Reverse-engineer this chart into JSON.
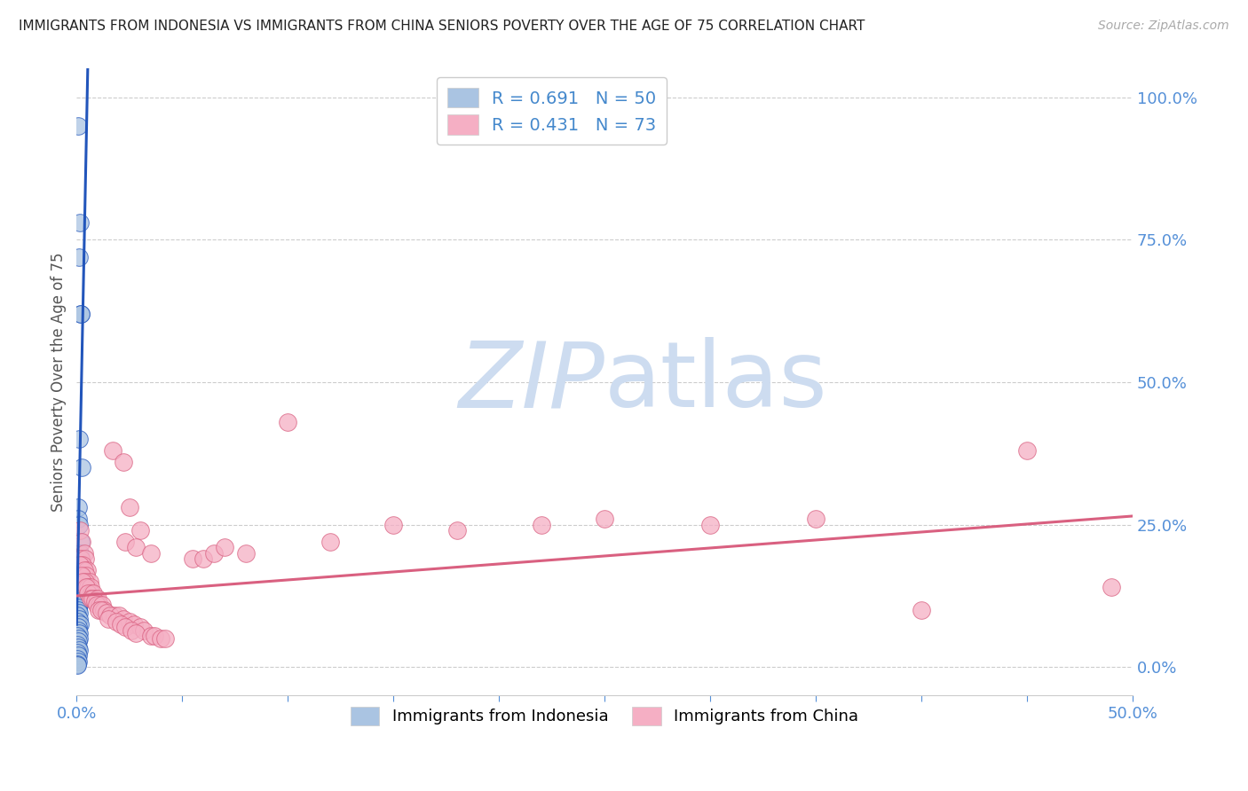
{
  "title": "IMMIGRANTS FROM INDONESIA VS IMMIGRANTS FROM CHINA SENIORS POVERTY OVER THE AGE OF 75 CORRELATION CHART",
  "source": "Source: ZipAtlas.com",
  "ylabel": "Seniors Poverty Over the Age of 75",
  "ylabel_right_ticks": [
    "0.0%",
    "25.0%",
    "50.0%",
    "75.0%",
    "100.0%"
  ],
  "ylabel_right_vals": [
    0.0,
    0.25,
    0.5,
    0.75,
    1.0
  ],
  "xmin": 0.0,
  "xmax": 0.5,
  "ymin": -0.05,
  "ymax": 1.05,
  "legend1_label": "Immigrants from Indonesia",
  "legend2_label": "Immigrants from China",
  "R_indonesia": 0.691,
  "N_indonesia": 50,
  "R_china": 0.431,
  "N_china": 73,
  "color_indonesia": "#aac4e2",
  "color_china": "#f5afc4",
  "line_color_indonesia": "#2255bb",
  "line_color_china": "#d96080",
  "watermark_zip": "ZIP",
  "watermark_atlas": "atlas",
  "watermark_color_zip": "#c5d8f2",
  "watermark_color_atlas": "#c5d8f2",
  "background_color": "#ffffff",
  "indonesia_points": [
    [
      0.0008,
      0.95
    ],
    [
      0.0015,
      0.78
    ],
    [
      0.001,
      0.72
    ],
    [
      0.002,
      0.62
    ],
    [
      0.0018,
      0.62
    ],
    [
      0.0012,
      0.4
    ],
    [
      0.0025,
      0.35
    ],
    [
      0.0008,
      0.28
    ],
    [
      0.0006,
      0.26
    ],
    [
      0.001,
      0.25
    ],
    [
      0.0018,
      0.22
    ],
    [
      0.0015,
      0.2
    ],
    [
      0.002,
      0.19
    ],
    [
      0.0012,
      0.18
    ],
    [
      0.001,
      0.175
    ],
    [
      0.0005,
      0.17
    ],
    [
      0.0008,
      0.165
    ],
    [
      0.0015,
      0.16
    ],
    [
      0.001,
      0.155
    ],
    [
      0.0006,
      0.15
    ],
    [
      0.0018,
      0.145
    ],
    [
      0.001,
      0.14
    ],
    [
      0.0005,
      0.135
    ],
    [
      0.0012,
      0.13
    ],
    [
      0.0008,
      0.125
    ],
    [
      0.0015,
      0.12
    ],
    [
      0.0004,
      0.115
    ],
    [
      0.001,
      0.11
    ],
    [
      0.0006,
      0.105
    ],
    [
      0.0008,
      0.1
    ],
    [
      0.0012,
      0.095
    ],
    [
      0.0005,
      0.09
    ],
    [
      0.001,
      0.085
    ],
    [
      0.0004,
      0.08
    ],
    [
      0.0015,
      0.075
    ],
    [
      0.0008,
      0.07
    ],
    [
      0.0006,
      0.065
    ],
    [
      0.001,
      0.06
    ],
    [
      0.0004,
      0.055
    ],
    [
      0.0012,
      0.05
    ],
    [
      0.0008,
      0.045
    ],
    [
      0.0003,
      0.04
    ],
    [
      0.0006,
      0.035
    ],
    [
      0.001,
      0.03
    ],
    [
      0.0004,
      0.025
    ],
    [
      0.0008,
      0.02
    ],
    [
      0.0003,
      0.015
    ],
    [
      0.0006,
      0.01
    ],
    [
      0.0002,
      0.005
    ],
    [
      0.0004,
      0.003
    ]
  ],
  "china_points": [
    [
      0.0015,
      0.24
    ],
    [
      0.0025,
      0.22
    ],
    [
      0.0035,
      0.2
    ],
    [
      0.002,
      0.19
    ],
    [
      0.004,
      0.19
    ],
    [
      0.003,
      0.18
    ],
    [
      0.0015,
      0.18
    ],
    [
      0.005,
      0.17
    ],
    [
      0.0035,
      0.17
    ],
    [
      0.0045,
      0.16
    ],
    [
      0.0025,
      0.16
    ],
    [
      0.006,
      0.15
    ],
    [
      0.004,
      0.15
    ],
    [
      0.003,
      0.15
    ],
    [
      0.0055,
      0.14
    ],
    [
      0.0065,
      0.14
    ],
    [
      0.0045,
      0.14
    ],
    [
      0.007,
      0.13
    ],
    [
      0.0055,
      0.13
    ],
    [
      0.008,
      0.13
    ],
    [
      0.0065,
      0.12
    ],
    [
      0.009,
      0.12
    ],
    [
      0.0075,
      0.12
    ],
    [
      0.01,
      0.12
    ],
    [
      0.0085,
      0.115
    ],
    [
      0.011,
      0.11
    ],
    [
      0.0095,
      0.11
    ],
    [
      0.012,
      0.11
    ],
    [
      0.0105,
      0.1
    ],
    [
      0.013,
      0.1
    ],
    [
      0.0115,
      0.1
    ],
    [
      0.014,
      0.095
    ],
    [
      0.018,
      0.09
    ],
    [
      0.016,
      0.09
    ],
    [
      0.02,
      0.09
    ],
    [
      0.015,
      0.085
    ],
    [
      0.022,
      0.085
    ],
    [
      0.019,
      0.08
    ],
    [
      0.025,
      0.08
    ],
    [
      0.021,
      0.075
    ],
    [
      0.027,
      0.075
    ],
    [
      0.023,
      0.07
    ],
    [
      0.03,
      0.07
    ],
    [
      0.026,
      0.065
    ],
    [
      0.032,
      0.065
    ],
    [
      0.028,
      0.06
    ],
    [
      0.035,
      0.055
    ],
    [
      0.037,
      0.055
    ],
    [
      0.04,
      0.05
    ],
    [
      0.042,
      0.05
    ],
    [
      0.017,
      0.38
    ],
    [
      0.022,
      0.36
    ],
    [
      0.025,
      0.28
    ],
    [
      0.03,
      0.24
    ],
    [
      0.023,
      0.22
    ],
    [
      0.028,
      0.21
    ],
    [
      0.035,
      0.2
    ],
    [
      0.055,
      0.19
    ],
    [
      0.06,
      0.19
    ],
    [
      0.065,
      0.2
    ],
    [
      0.07,
      0.21
    ],
    [
      0.08,
      0.2
    ],
    [
      0.1,
      0.43
    ],
    [
      0.12,
      0.22
    ],
    [
      0.15,
      0.25
    ],
    [
      0.18,
      0.24
    ],
    [
      0.22,
      0.25
    ],
    [
      0.25,
      0.26
    ],
    [
      0.3,
      0.25
    ],
    [
      0.35,
      0.26
    ],
    [
      0.4,
      0.1
    ],
    [
      0.45,
      0.38
    ],
    [
      0.49,
      0.14
    ]
  ]
}
